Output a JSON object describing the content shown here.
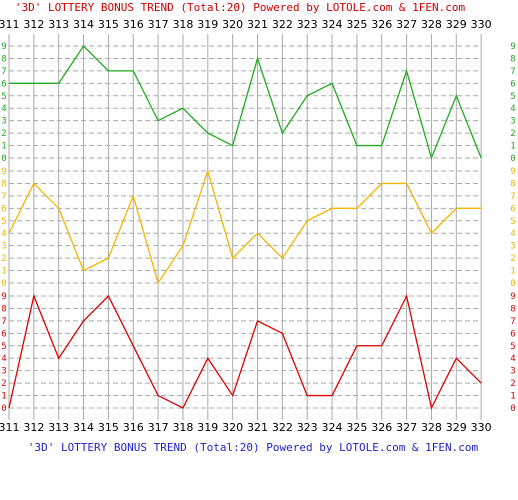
{
  "title": "'3D' LOTTERY BONUS TREND (Total:20)  Powered by LOTOLE.com & 1FEN.com",
  "footer": "'3D' LOTTERY BONUS TREND (Total:20)  Powered by LOTOLE.com & 1FEN.com",
  "colors": {
    "title": "#cc0000",
    "footer": "#2222cc",
    "grid": "#aaaaaa",
    "axis_text": "#000000"
  },
  "chart_data": [
    {
      "type": "line",
      "name": "top",
      "color": "#22aa22",
      "x": [
        "311",
        "312",
        "313",
        "314",
        "315",
        "316",
        "317",
        "318",
        "319",
        "320",
        "321",
        "322",
        "323",
        "324",
        "325",
        "326",
        "327",
        "328",
        "329",
        "330"
      ],
      "values": [
        6,
        6,
        6,
        9,
        7,
        7,
        3,
        4,
        2,
        1,
        8,
        2,
        5,
        6,
        1,
        1,
        7,
        0,
        5,
        0
      ],
      "ylim": [
        0,
        9
      ],
      "y_ticks": [
        "0",
        "1",
        "2",
        "3",
        "4",
        "5",
        "6",
        "7",
        "8",
        "9"
      ]
    },
    {
      "type": "line",
      "name": "middle",
      "color": "#f2b600",
      "x": [
        "311",
        "312",
        "313",
        "314",
        "315",
        "316",
        "317",
        "318",
        "319",
        "320",
        "321",
        "322",
        "323",
        "324",
        "325",
        "326",
        "327",
        "328",
        "329",
        "330"
      ],
      "values": [
        4,
        8,
        6,
        1,
        2,
        7,
        0,
        3,
        9,
        2,
        4,
        2,
        5,
        6,
        6,
        8,
        8,
        4,
        6,
        6
      ],
      "ylim": [
        0,
        9
      ],
      "y_ticks": [
        "0",
        "1",
        "2",
        "3",
        "4",
        "5",
        "6",
        "7",
        "8",
        "9"
      ]
    },
    {
      "type": "line",
      "name": "bottom",
      "color": "#dd0000",
      "x": [
        "311",
        "312",
        "313",
        "314",
        "315",
        "316",
        "317",
        "318",
        "319",
        "320",
        "321",
        "322",
        "323",
        "324",
        "325",
        "326",
        "327",
        "328",
        "329",
        "330"
      ],
      "values": [
        0,
        9,
        4,
        7,
        9,
        5,
        1,
        0,
        4,
        1,
        7,
        6,
        1,
        1,
        5,
        5,
        9,
        0,
        4,
        2
      ],
      "ylim": [
        0,
        9
      ],
      "y_ticks": [
        "0",
        "1",
        "2",
        "3",
        "4",
        "5",
        "6",
        "7",
        "8",
        "9"
      ]
    }
  ],
  "x_labels": [
    "311",
    "312",
    "313",
    "314",
    "315",
    "316",
    "317",
    "318",
    "319",
    "320",
    "321",
    "322",
    "323",
    "324",
    "325",
    "326",
    "327",
    "328",
    "329",
    "330"
  ]
}
